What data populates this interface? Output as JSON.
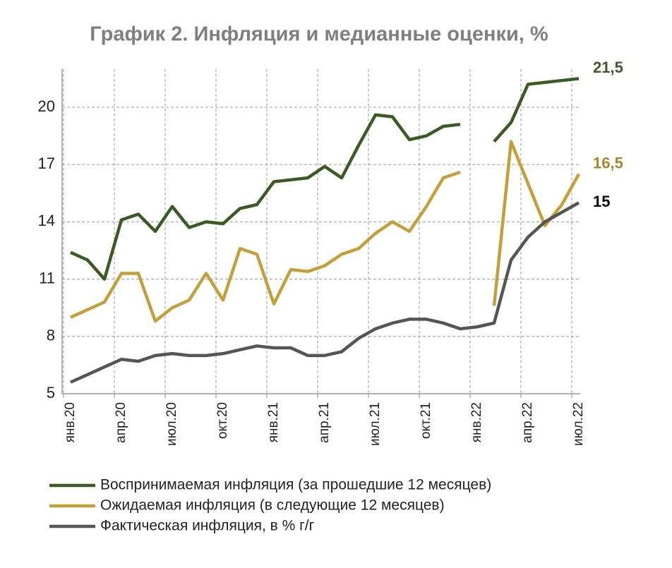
{
  "chart_data": {
    "type": "line",
    "title": "График 2. Инфляция и медианные оценки, %",
    "categories": [
      "янв.20",
      null,
      null,
      "апр.20",
      null,
      null,
      "июл.20",
      null,
      null,
      "окт.20",
      null,
      null,
      "янв.21",
      null,
      null,
      "апр.21",
      null,
      null,
      "июл.21",
      null,
      null,
      "окт.21",
      null,
      null,
      "янв.22",
      null,
      null,
      "апр.22",
      null,
      null,
      "июл.22"
    ],
    "series": [
      {
        "name": "Воспринимаемая инфляция (за прошедшие 12 месяцев)",
        "color": "#3b5a25",
        "values": [
          12.4,
          12.0,
          11.0,
          14.1,
          14.4,
          13.5,
          14.8,
          13.7,
          14.0,
          13.9,
          14.7,
          14.9,
          16.1,
          16.2,
          16.3,
          16.9,
          16.3,
          18.0,
          19.6,
          19.5,
          18.3,
          18.5,
          19.0,
          19.1,
          null,
          18.2,
          19.2,
          21.2,
          21.3,
          21.4,
          21.5
        ],
        "value_labels": [
          null,
          null,
          null,
          null,
          null,
          null,
          null,
          null,
          null,
          null,
          null,
          null,
          null,
          null,
          null,
          null,
          null,
          null,
          null,
          null,
          null,
          null,
          null,
          null,
          null,
          null,
          null,
          null,
          null,
          null,
          "21,5"
        ],
        "label_color": "#3d5a27"
      },
      {
        "name": "Ожидаемая инфляция (в следующие 12 месяцев)",
        "color": "#c4a03c",
        "values": [
          9.0,
          9.4,
          9.8,
          11.3,
          11.3,
          8.8,
          9.5,
          9.9,
          11.3,
          9.9,
          12.6,
          12.3,
          9.7,
          11.5,
          11.4,
          11.7,
          12.3,
          12.6,
          13.4,
          14.0,
          13.5,
          14.8,
          16.3,
          16.6,
          null,
          9.6,
          18.2,
          16.0,
          13.8,
          14.9,
          16.5
        ],
        "value_labels": [
          null,
          null,
          null,
          null,
          null,
          null,
          null,
          null,
          null,
          null,
          null,
          null,
          null,
          null,
          null,
          null,
          null,
          null,
          null,
          null,
          null,
          null,
          null,
          null,
          null,
          null,
          null,
          null,
          null,
          null,
          "16,5"
        ],
        "label_color": "#a8862e"
      },
      {
        "name": "Фактическая инфляция, в % г/г",
        "color": "#555555",
        "values": [
          5.6,
          6.0,
          6.4,
          6.8,
          6.7,
          7.0,
          7.1,
          7.0,
          7.0,
          7.1,
          7.3,
          7.5,
          7.4,
          7.4,
          7.0,
          7.0,
          7.2,
          7.9,
          8.4,
          8.7,
          8.9,
          8.9,
          8.7,
          8.4,
          8.5,
          8.7,
          12.0,
          13.2,
          14.0,
          14.5,
          15.0
        ],
        "value_labels": [
          null,
          null,
          null,
          null,
          null,
          null,
          null,
          null,
          null,
          null,
          null,
          null,
          null,
          null,
          null,
          null,
          null,
          null,
          null,
          null,
          null,
          null,
          null,
          null,
          null,
          null,
          null,
          null,
          null,
          null,
          "15"
        ],
        "label_color": "#000000"
      }
    ],
    "ylim": [
      5,
      22
    ],
    "yticks": [
      5,
      8,
      11,
      14,
      17,
      20
    ],
    "grid": true
  }
}
